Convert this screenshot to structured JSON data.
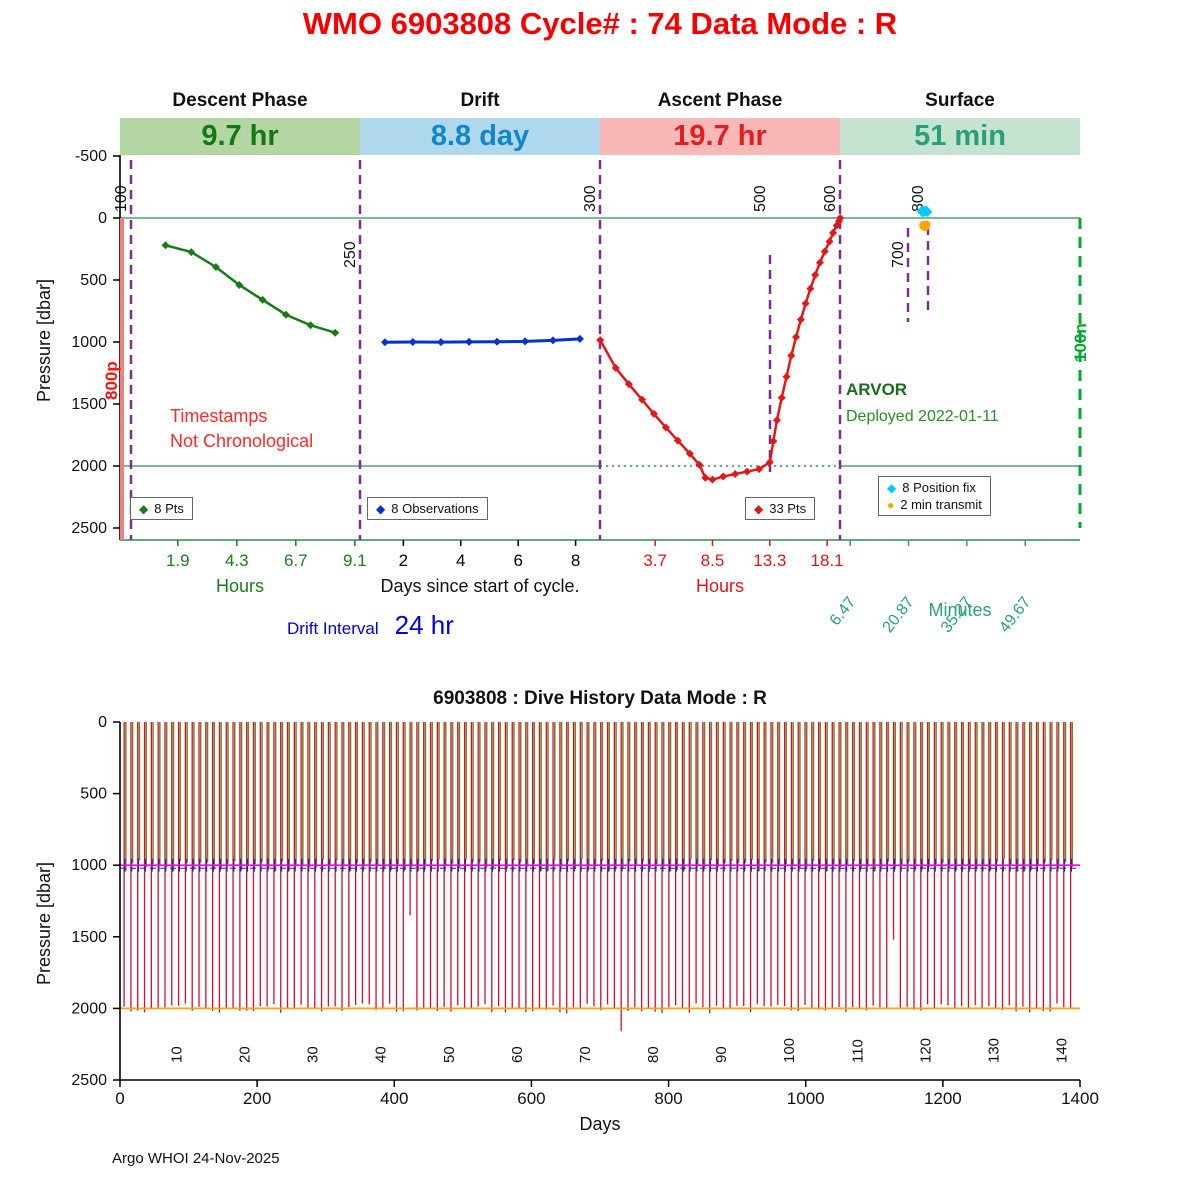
{
  "app": {
    "title_line": "WMO 6903808   Cycle# : 74   Data Mode : R",
    "footer": "Argo WHOI 24-Nov-2025"
  },
  "drift_interval": {
    "label": "Drift Interval",
    "value": "24 hr"
  },
  "annotations": {
    "note_line1": "Timestamps",
    "note_line2": "Not Chronological",
    "float_model": "ARVOR",
    "deployed": "Deployed 2022-01-11"
  },
  "icons": {
    "diamond": "◆",
    "circle": "●"
  },
  "colors": {
    "title": "#f50000",
    "descent": "#1a7a1a",
    "descent_banner_bg": "#b4d6a4",
    "descent_banner_fg": "#157815",
    "drift": "#0033cc",
    "drift_banner_bg": "#b0d8ec",
    "drift_banner_fg": "#1287c8",
    "ascent": "#e01818",
    "ascent_banner_bg": "#f8b8b8",
    "ascent_banner_fg": "#e02020",
    "surface_axis": "#2aa07e",
    "surface_banner_bg": "#c4e4d0",
    "surface_banner_fg": "#28a07a",
    "marker_line": "#7e2f8e",
    "position_fix": "#00ccff",
    "transmit": "#ffa500",
    "ref_line": "#2e8b57",
    "park_line": "#ff00ff",
    "profile_line": "#ffa500",
    "history_red": "#cc1133",
    "history_olive": "#7d7d21",
    "history_blue": "#2222bb",
    "timestamps_note": "#ff2a2a",
    "float_label": "#1b6b1b",
    "deployed": "#2a8a2a",
    "left_edge_line": "#f08080",
    "left_edge_label": "#ff1111",
    "right_edge_line": "#00a832"
  },
  "chart_data": [
    {
      "id": "cycle-timing-plot",
      "type": "line",
      "ylabel": "Pressure [dbar]",
      "ylim": [
        -500,
        2500
      ],
      "yticks": [
        -500,
        0,
        500,
        1000,
        1500,
        2000,
        2500
      ],
      "ref_pressures": [
        0,
        2000
      ],
      "phases": [
        {
          "name": "Descent Phase",
          "duration": "9.7 hr",
          "xlabel": "Hours",
          "axis_color": "#1b7e1b",
          "xlim": [
            -0.45,
            9.31
          ],
          "xticks": [
            "1.9",
            "4.3",
            "6.7",
            "9.1"
          ],
          "rotate_ticks": false,
          "series": [
            {
              "label": "8 Pts",
              "color": "#1a7a1a",
              "marker": "diamond",
              "draw_line": true,
              "width": 2.5,
              "x": [
                1.4,
                2.45,
                3.45,
                4.4,
                5.35,
                6.3,
                7.3,
                8.3
              ],
              "pressure": [
                220,
                275,
                395,
                540,
                660,
                780,
                865,
                925
              ]
            }
          ]
        },
        {
          "name": "Drift",
          "duration": "8.8 day",
          "xlabel": "Days since start of cycle.",
          "axis_color": "#000000",
          "xlim": [
            0.49,
            8.85
          ],
          "xticks": [
            "2",
            "4",
            "6",
            "8"
          ],
          "rotate_ticks": false,
          "series": [
            {
              "label": "8 Observations",
              "color": "#0033cc",
              "marker": "diamond",
              "draw_line": true,
              "width": 3,
              "x": [
                1.36,
                2.33,
                3.31,
                4.29,
                5.26,
                6.24,
                7.21,
                8.15
              ],
              "pressure": [
                1002,
                1000,
                1001,
                999,
                998,
                995,
                987,
                975
              ]
            }
          ]
        },
        {
          "name": "Ascent Phase",
          "duration": "19.7 hr",
          "xlabel": "Hours",
          "axis_color": "#e01818",
          "xlim": [
            -0.92,
            19.18
          ],
          "xticks": [
            "3.7",
            "8.5",
            "13.3",
            "18.1"
          ],
          "rotate_ticks": false,
          "series": [
            {
              "label": "33 Pts",
              "color": "#e01818",
              "marker": "diamond",
              "draw_line": true,
              "width": 2.5,
              "x": [
                -0.9,
                0.4,
                1.5,
                2.6,
                3.6,
                4.6,
                5.6,
                6.6,
                7.4,
                7.9,
                8.5,
                9.4,
                10.4,
                11.4,
                12.4,
                13.3,
                13.6,
                13.9,
                14.3,
                14.7,
                15.1,
                15.5,
                15.9,
                16.3,
                16.7,
                17.1,
                17.5,
                17.9,
                18.3,
                18.6,
                18.9,
                19.1,
                19.2
              ],
              "pressure": [
                985,
                1210,
                1340,
                1465,
                1580,
                1690,
                1795,
                1900,
                1990,
                2095,
                2110,
                2085,
                2065,
                2045,
                2025,
                1970,
                1800,
                1630,
                1450,
                1280,
                1110,
                960,
                820,
                690,
                570,
                460,
                360,
                270,
                190,
                120,
                60,
                25,
                0
              ]
            }
          ]
        },
        {
          "name": "Surface",
          "duration": "51 min",
          "xlabel": "Minutes",
          "axis_color": "#2aa07e",
          "xlim": [
            3.95,
            63.2
          ],
          "xticks": [
            "6.47",
            "20.87",
            "35.27",
            "49.67"
          ],
          "rotate_ticks": true,
          "series": [
            {
              "label": "8 Position fix",
              "color": "#00ccff",
              "marker": "diamond",
              "draw_line": false,
              "width": 1,
              "x": [
                24.1,
                24.3,
                24.5,
                24.7,
                24.9,
                25.1,
                25.3,
                25.5
              ],
              "pressure": [
                -55,
                -45,
                -60,
                -52,
                -50,
                -62,
                -58,
                -48
              ]
            },
            {
              "label": "2 min transmit",
              "color": "#ffa500",
              "marker": "circle",
              "draw_line": false,
              "width": 1,
              "x": [
                24.6,
                24.9,
                25.2
              ],
              "pressure": [
                60,
                70,
                55
              ]
            }
          ]
        }
      ],
      "event_lines": [
        {
          "label": "100",
          "x": 131,
          "y1": 160,
          "y2": 540,
          "label_y": 212
        },
        {
          "label": "250",
          "x": 360,
          "y1": 160,
          "y2": 540,
          "label_y": 268
        },
        {
          "label": "300",
          "x": 600,
          "y1": 160,
          "y2": 540,
          "label_y": 212
        },
        {
          "label": "500",
          "x": 770,
          "y1": 255,
          "y2": 472,
          "label_y": 212
        },
        {
          "label": "600",
          "x": 840,
          "y1": 160,
          "y2": 540,
          "label_y": 212
        },
        {
          "label": "700",
          "x": 908,
          "y1": 228,
          "y2": 322,
          "label_y": 268
        },
        {
          "label": "800",
          "x": 928,
          "y1": 226,
          "y2": 312,
          "label_y": 212
        }
      ],
      "edge_lines": [
        {
          "label": "800p",
          "x": 122,
          "y1": 218,
          "y2": 540,
          "label_x": 117,
          "label_y": 400,
          "line_color": "#f08080",
          "label_color": "#ff1111",
          "dashed": false,
          "width": 4
        },
        {
          "label": "100n",
          "x": 1080,
          "y1": 218,
          "y2": 528,
          "label_x": 1086,
          "label_y": 362,
          "line_color": "#00a832",
          "label_color": "#00a832",
          "dashed": true,
          "width": 3
        }
      ]
    },
    {
      "id": "dive-history-plot",
      "type": "line",
      "title": "6903808 : Dive History      Data Mode : R",
      "xlabel": "Days",
      "ylabel": "Pressure [dbar]",
      "xlim": [
        0,
        1400
      ],
      "ylim": [
        0,
        2500
      ],
      "xticks": [
        0,
        200,
        400,
        600,
        800,
        1000,
        1200,
        1400
      ],
      "yticks": [
        0,
        500,
        1000,
        1500,
        2000,
        2500
      ],
      "park_line": 1000,
      "profile_line": 2000,
      "cycles": {
        "count": 140,
        "first_day": 6,
        "spacing_days": 9.93,
        "profile_depth": 2000,
        "park_depth": 1000,
        "label_every": 10,
        "labels": [
          10,
          20,
          30,
          40,
          50,
          60,
          70,
          80,
          90,
          100,
          110,
          120,
          130,
          140
        ],
        "anomalies": [
          {
            "cycle": 43,
            "depth": 1350
          },
          {
            "cycle": 74,
            "depth": 2160
          },
          {
            "cycle": 114,
            "depth": 1520
          }
        ]
      }
    }
  ]
}
